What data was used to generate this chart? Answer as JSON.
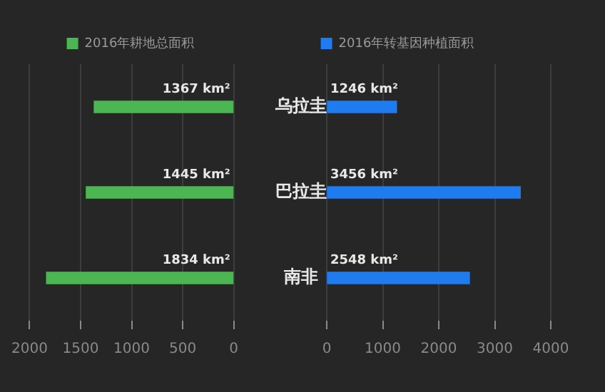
{
  "chart_data": [
    {
      "type": "bar",
      "orientation": "horizontal",
      "categories": [
        null,
        null,
        null
      ],
      "series": [
        {
          "name": "2016年耕地总面积",
          "color": "#4cb752",
          "values": [
            1367,
            1445,
            1834
          ],
          "value_labels": [
            "1367 km²",
            "1445 km²",
            "1834 km²"
          ]
        }
      ],
      "xlim": [
        2000,
        0
      ],
      "xticks": [
        2000,
        1500,
        1000,
        500,
        0
      ],
      "grid": "x",
      "legend": "top"
    },
    {
      "type": "bar",
      "orientation": "horizontal",
      "categories": [
        "乌拉圭",
        "巴拉圭",
        "南非"
      ],
      "series": [
        {
          "name": "2016年转基因种植面积",
          "color": "#1f7cf0",
          "values": [
            1246,
            3456,
            2548
          ],
          "value_labels": [
            "1246 km²",
            "3456 km²",
            "2548 km²"
          ]
        }
      ],
      "xlim": [
        0,
        4000
      ],
      "xticks": [
        0,
        1000,
        2000,
        3000,
        4000
      ],
      "grid": "x",
      "legend": "top"
    }
  ]
}
